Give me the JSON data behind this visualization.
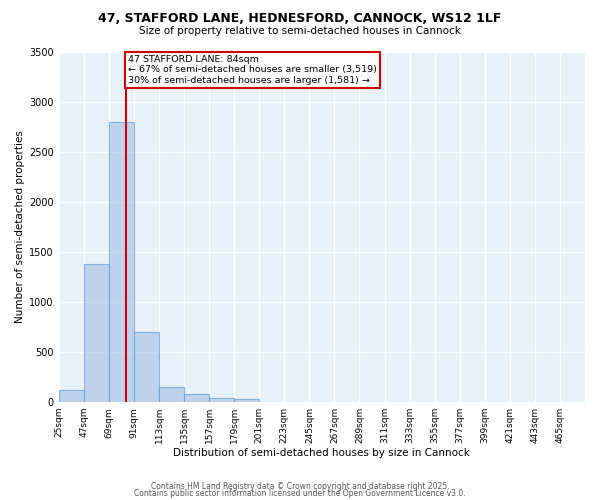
{
  "title": "47, STAFFORD LANE, HEDNESFORD, CANNOCK, WS12 1LF",
  "subtitle": "Size of property relative to semi-detached houses in Cannock",
  "xlabel": "Distribution of semi-detached houses by size in Cannock",
  "ylabel": "Number of semi-detached properties",
  "bins_start": [
    25,
    47,
    69,
    91,
    113,
    135,
    157,
    179,
    201,
    223,
    245,
    267,
    289,
    311,
    333,
    355,
    377,
    399,
    421,
    443,
    465
  ],
  "bin_width": 22,
  "bar_heights": [
    120,
    1380,
    2800,
    700,
    155,
    80,
    45,
    30,
    5,
    2,
    1,
    0,
    0,
    0,
    0,
    0,
    0,
    0,
    0,
    0
  ],
  "bar_color": "#aec6e8",
  "bar_edge_color": "#5a9fd4",
  "bar_alpha": 0.7,
  "red_line_x": 84,
  "red_line_color": "#cc0000",
  "annotation_line1": "47 STAFFORD LANE: 84sqm",
  "annotation_line2": "← 67% of semi-detached houses are smaller (3,519)",
  "annotation_line3": "30% of semi-detached houses are larger (1,581) →",
  "annotation_box_color": "white",
  "annotation_box_edge": "#cc0000",
  "ylim": [
    0,
    3500
  ],
  "yticks": [
    0,
    500,
    1000,
    1500,
    2000,
    2500,
    3000,
    3500
  ],
  "bg_color": "#e8f0f8",
  "grid_color": "white",
  "footer1": "Contains HM Land Registry data © Crown copyright and database right 2025.",
  "footer2": "Contains public sector information licensed under the Open Government Licence v3.0."
}
